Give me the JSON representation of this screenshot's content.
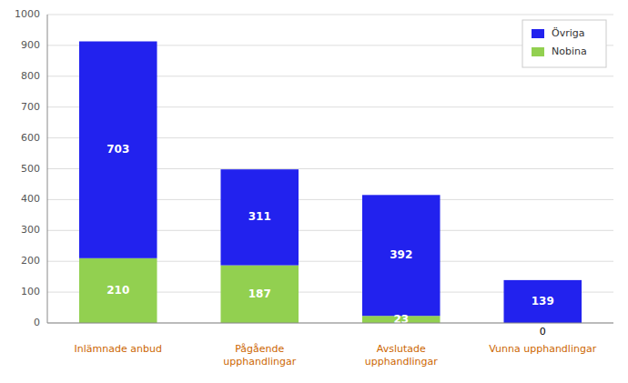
{
  "chart_data": {
    "type": "bar",
    "stacked": true,
    "categories": [
      "Inlämnade anbud",
      "Pågående\nupphandlingar",
      "Avslutade\nupphandlingar",
      "Vunna upphandlingar"
    ],
    "series": [
      {
        "name": "Nobina",
        "color": "#92d050",
        "values": [
          210,
          187,
          23,
          0
        ]
      },
      {
        "name": "Övriga",
        "color": "#2222ee",
        "values": [
          703,
          311,
          392,
          139
        ]
      }
    ],
    "ylim": [
      0,
      1000
    ],
    "yticks": [
      0,
      100,
      200,
      300,
      400,
      500,
      600,
      700,
      800,
      900,
      1000
    ],
    "grid": true,
    "legend": "upper right",
    "data_labels": true
  }
}
